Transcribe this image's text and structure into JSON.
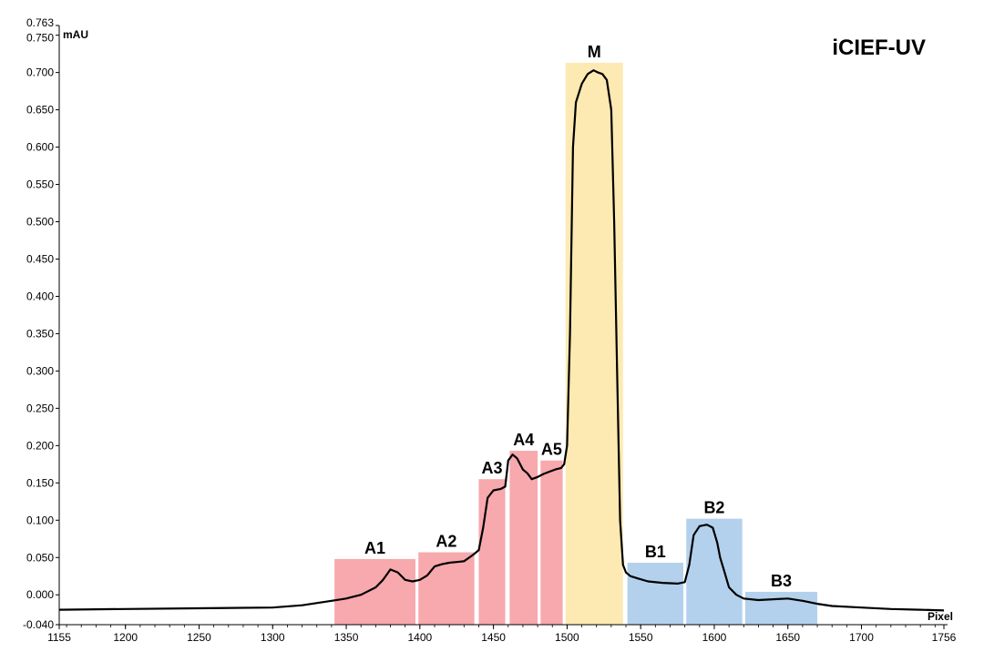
{
  "chart_data": {
    "type": "line",
    "title": "iCIEF-UV",
    "xlabel": "Pixel",
    "ylabel": "mAU",
    "xlim": [
      1155,
      1756
    ],
    "ylim": [
      -0.04,
      0.763
    ],
    "xticks": [
      1155,
      1200,
      1250,
      1300,
      1350,
      1400,
      1450,
      1500,
      1550,
      1600,
      1650,
      1700,
      1756
    ],
    "xtick_labels": [
      "1155",
      "1200",
      "1250",
      "1300",
      "1350",
      "1400",
      "1450",
      "1500",
      "1550",
      "1600",
      "1650",
      "1700",
      "1756"
    ],
    "yticks": [
      -0.04,
      0.0,
      0.05,
      0.1,
      0.15,
      0.2,
      0.25,
      0.3,
      0.35,
      0.4,
      0.45,
      0.5,
      0.55,
      0.6,
      0.65,
      0.7,
      0.75,
      0.763
    ],
    "ytick_labels": [
      "-0.040",
      "0.000",
      "0.050",
      "0.100",
      "0.150",
      "0.200",
      "0.250",
      "0.300",
      "0.350",
      "0.400",
      "0.450",
      "0.500",
      "0.550",
      "0.600",
      "0.650",
      "0.700",
      "0.750",
      "0.763"
    ],
    "regions": [
      {
        "label": "A1",
        "x0": 1342,
        "x1": 1397,
        "top": 0.048,
        "color": "#f7a9ae"
      },
      {
        "label": "A2",
        "x0": 1399,
        "x1": 1437,
        "top": 0.057,
        "color": "#f7a9ae"
      },
      {
        "label": "A3",
        "x0": 1440,
        "x1": 1458,
        "top": 0.155,
        "color": "#f7a9ae"
      },
      {
        "label": "A4",
        "x0": 1461,
        "x1": 1480,
        "top": 0.193,
        "color": "#f7a9ae"
      },
      {
        "label": "A5",
        "x0": 1482,
        "x1": 1497,
        "top": 0.18,
        "color": "#f7a9ae"
      },
      {
        "label": "M",
        "x0": 1499,
        "x1": 1538,
        "top": 0.713,
        "color": "#fde9b2"
      },
      {
        "label": "B1",
        "x0": 1541,
        "x1": 1579,
        "top": 0.043,
        "color": "#b3d1ec"
      },
      {
        "label": "B2",
        "x0": 1581,
        "x1": 1619,
        "top": 0.102,
        "color": "#b3d1ec"
      },
      {
        "label": "B3",
        "x0": 1621,
        "x1": 1670,
        "top": 0.004,
        "color": "#b3d1ec"
      }
    ],
    "series": [
      {
        "name": "iCIEF-UV trace",
        "color": "#000000",
        "x": [
          1155,
          1200,
          1250,
          1300,
          1320,
          1340,
          1350,
          1360,
          1370,
          1375,
          1380,
          1385,
          1390,
          1395,
          1400,
          1405,
          1410,
          1415,
          1420,
          1425,
          1430,
          1435,
          1437,
          1440,
          1443,
          1446,
          1450,
          1455,
          1458,
          1460,
          1463,
          1466,
          1470,
          1473,
          1476,
          1480,
          1484,
          1488,
          1492,
          1496,
          1498,
          1500,
          1502,
          1504,
          1506,
          1510,
          1514,
          1518,
          1521,
          1524,
          1527,
          1530,
          1532,
          1534,
          1536,
          1538,
          1540,
          1543,
          1548,
          1555,
          1565,
          1575,
          1580,
          1583,
          1586,
          1590,
          1595,
          1599,
          1602,
          1604,
          1607,
          1610,
          1615,
          1620,
          1630,
          1640,
          1650,
          1660,
          1670,
          1680,
          1700,
          1720,
          1740,
          1756
        ],
        "y": [
          -0.02,
          -0.019,
          -0.018,
          -0.017,
          -0.014,
          -0.008,
          -0.005,
          0.0,
          0.01,
          0.02,
          0.034,
          0.03,
          0.02,
          0.018,
          0.02,
          0.026,
          0.038,
          0.041,
          0.043,
          0.044,
          0.045,
          0.052,
          0.055,
          0.06,
          0.09,
          0.13,
          0.14,
          0.142,
          0.145,
          0.18,
          0.188,
          0.183,
          0.168,
          0.163,
          0.155,
          0.158,
          0.162,
          0.165,
          0.168,
          0.17,
          0.175,
          0.2,
          0.35,
          0.6,
          0.66,
          0.685,
          0.698,
          0.703,
          0.7,
          0.698,
          0.69,
          0.65,
          0.5,
          0.3,
          0.1,
          0.04,
          0.03,
          0.025,
          0.022,
          0.018,
          0.016,
          0.015,
          0.017,
          0.04,
          0.08,
          0.092,
          0.094,
          0.09,
          0.07,
          0.05,
          0.03,
          0.01,
          0.0,
          -0.005,
          -0.007,
          -0.006,
          -0.005,
          -0.008,
          -0.012,
          -0.015,
          -0.017,
          -0.019,
          -0.02,
          -0.021
        ]
      }
    ]
  }
}
